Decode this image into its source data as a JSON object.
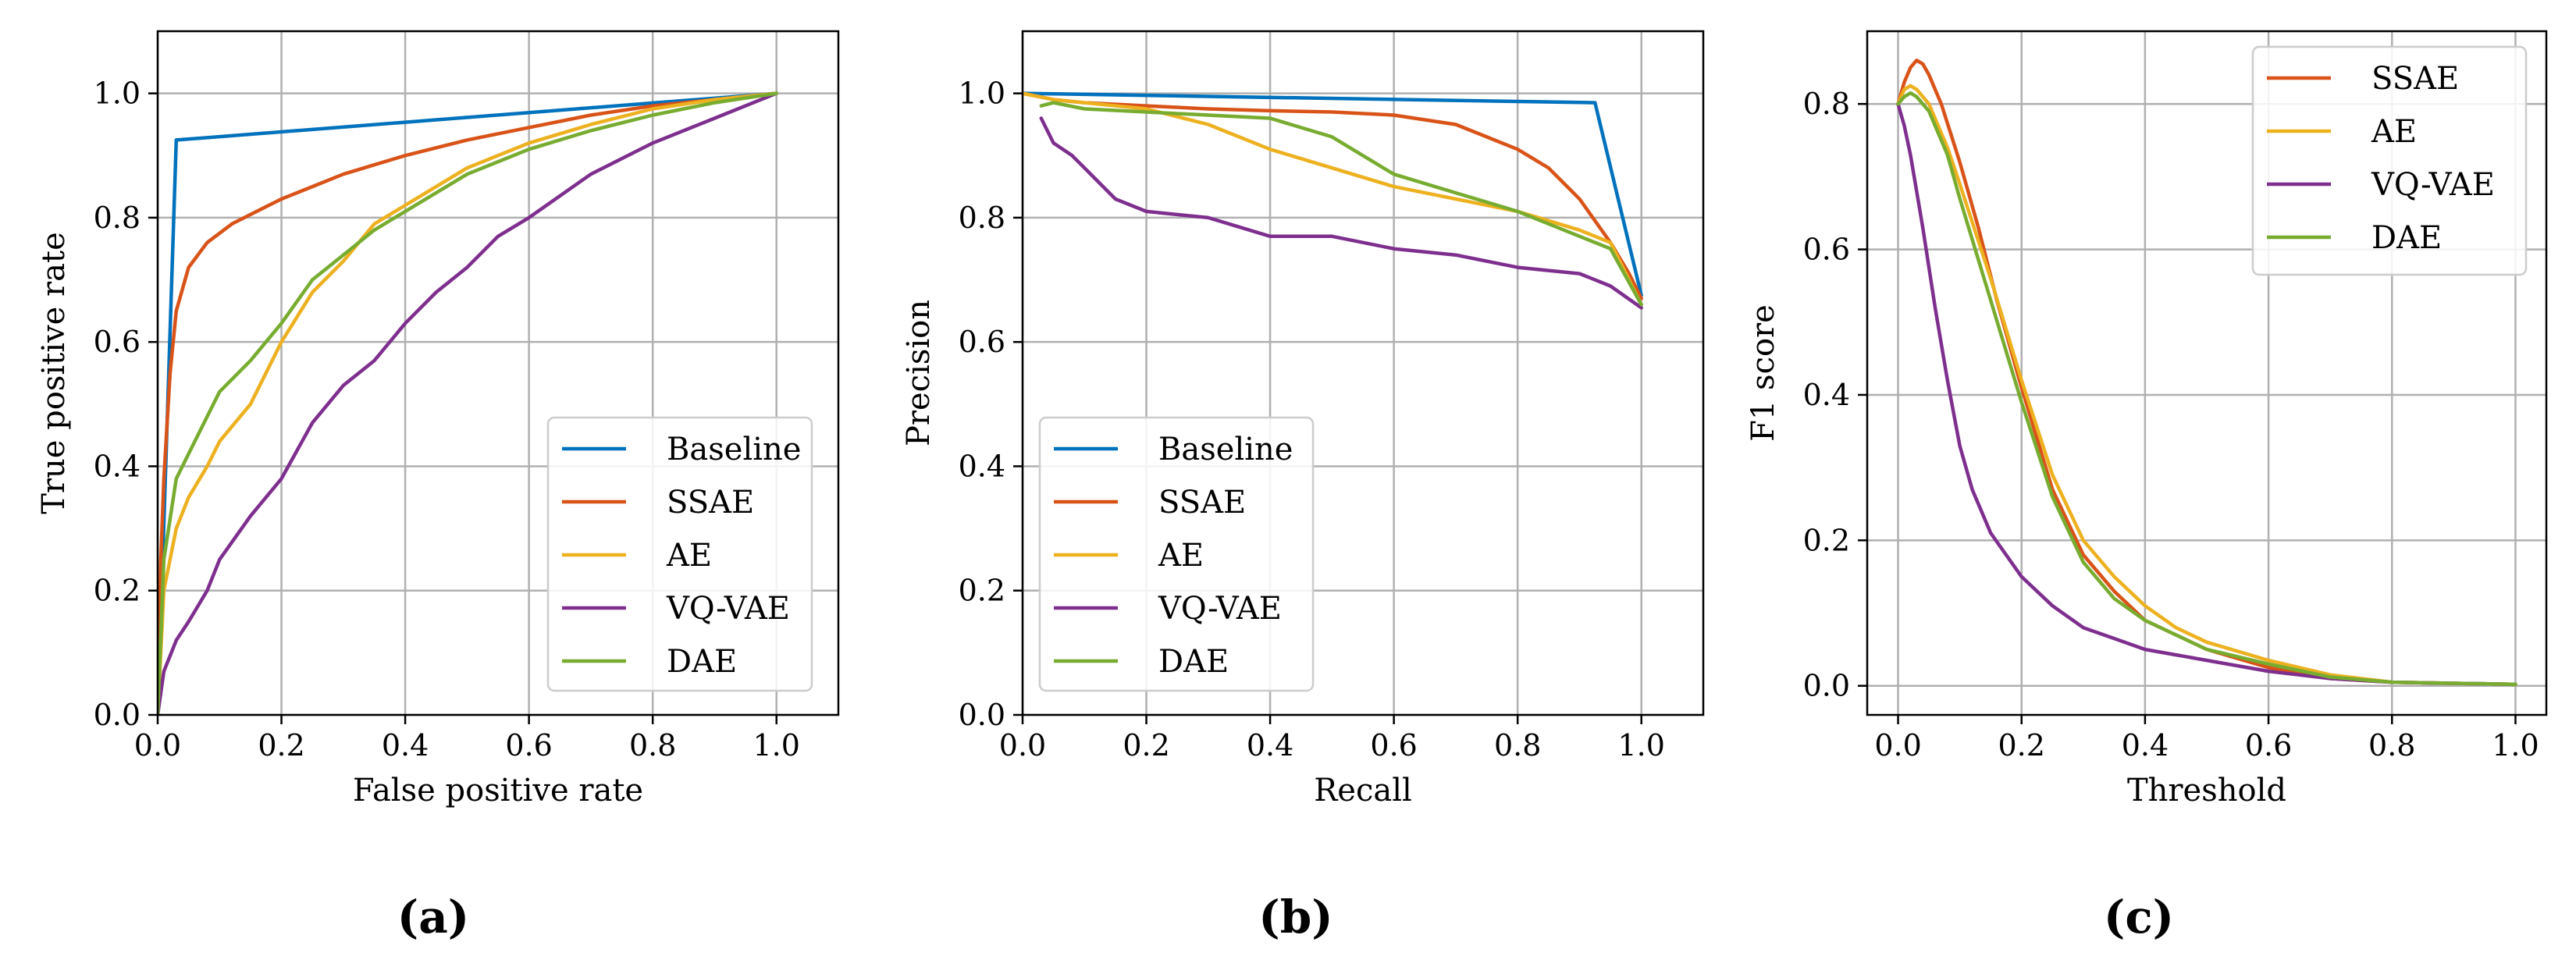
{
  "colors": {
    "Baseline": "#0072BD",
    "SSAE": "#D95319",
    "AE": "#EDB120",
    "VQ-VAE": "#7E2F8E",
    "DAE": "#77AC30"
  },
  "chart_data": [
    {
      "type": "line",
      "panel_label": "(a)",
      "title": "",
      "xlabel": "False positive rate",
      "ylabel": "True positive rate",
      "xlim": [
        0.0,
        1.1
      ],
      "ylim": [
        0.0,
        1.1
      ],
      "xticks": [
        0.0,
        0.2,
        0.4,
        0.6,
        0.8,
        1.0
      ],
      "yticks": [
        0.0,
        0.2,
        0.4,
        0.6,
        0.8,
        1.0
      ],
      "xtick_labels": [
        "0.0",
        "0.2",
        "0.4",
        "0.6",
        "0.8",
        "1.0"
      ],
      "ytick_labels": [
        "0.0",
        "0.2",
        "0.4",
        "0.6",
        "0.8",
        "1.0"
      ],
      "grid": true,
      "legend_position": "lower-right",
      "series": [
        {
          "name": "Baseline",
          "x": [
            0.0,
            0.03,
            1.0
          ],
          "y": [
            0.0,
            0.925,
            1.0
          ]
        },
        {
          "name": "SSAE",
          "x": [
            0.0,
            0.005,
            0.01,
            0.02,
            0.03,
            0.05,
            0.08,
            0.12,
            0.16,
            0.2,
            0.25,
            0.3,
            0.35,
            0.4,
            0.5,
            0.6,
            0.7,
            0.8,
            0.9,
            1.0
          ],
          "y": [
            0.0,
            0.25,
            0.38,
            0.55,
            0.65,
            0.72,
            0.76,
            0.79,
            0.81,
            0.83,
            0.85,
            0.87,
            0.885,
            0.9,
            0.925,
            0.945,
            0.965,
            0.98,
            0.99,
            1.0
          ]
        },
        {
          "name": "AE",
          "x": [
            0.0,
            0.01,
            0.03,
            0.05,
            0.08,
            0.1,
            0.15,
            0.2,
            0.25,
            0.3,
            0.35,
            0.4,
            0.5,
            0.6,
            0.7,
            0.8,
            0.9,
            1.0
          ],
          "y": [
            0.0,
            0.2,
            0.3,
            0.35,
            0.4,
            0.44,
            0.5,
            0.6,
            0.68,
            0.73,
            0.79,
            0.82,
            0.88,
            0.92,
            0.95,
            0.975,
            0.99,
            1.0
          ]
        },
        {
          "name": "VQ-VAE",
          "x": [
            0.0,
            0.01,
            0.03,
            0.05,
            0.08,
            0.1,
            0.15,
            0.2,
            0.25,
            0.3,
            0.35,
            0.4,
            0.45,
            0.5,
            0.55,
            0.6,
            0.7,
            0.8,
            0.9,
            1.0
          ],
          "y": [
            0.0,
            0.07,
            0.12,
            0.15,
            0.2,
            0.25,
            0.32,
            0.38,
            0.47,
            0.53,
            0.57,
            0.63,
            0.68,
            0.72,
            0.77,
            0.8,
            0.87,
            0.92,
            0.96,
            1.0
          ]
        },
        {
          "name": "DAE",
          "x": [
            0.0,
            0.01,
            0.03,
            0.05,
            0.08,
            0.1,
            0.15,
            0.2,
            0.25,
            0.3,
            0.35,
            0.4,
            0.5,
            0.6,
            0.7,
            0.8,
            0.9,
            1.0
          ],
          "y": [
            0.0,
            0.25,
            0.38,
            0.42,
            0.48,
            0.52,
            0.57,
            0.63,
            0.7,
            0.74,
            0.78,
            0.81,
            0.87,
            0.91,
            0.94,
            0.965,
            0.985,
            1.0
          ]
        }
      ]
    },
    {
      "type": "line",
      "panel_label": "(b)",
      "title": "",
      "xlabel": "Recall",
      "ylabel": "Precision",
      "xlim": [
        0.0,
        1.1
      ],
      "ylim": [
        0.0,
        1.1
      ],
      "xticks": [
        0.0,
        0.2,
        0.4,
        0.6,
        0.8,
        1.0
      ],
      "yticks": [
        0.0,
        0.2,
        0.4,
        0.6,
        0.8,
        1.0
      ],
      "xtick_labels": [
        "0.0",
        "0.2",
        "0.4",
        "0.6",
        "0.8",
        "1.0"
      ],
      "ytick_labels": [
        "0.0",
        "0.2",
        "0.4",
        "0.6",
        "0.8",
        "1.0"
      ],
      "grid": true,
      "legend_position": "lower-left",
      "series": [
        {
          "name": "Baseline",
          "x": [
            0.0,
            0.925,
            1.0
          ],
          "y": [
            1.0,
            0.985,
            0.675
          ]
        },
        {
          "name": "SSAE",
          "x": [
            0.0,
            0.05,
            0.1,
            0.2,
            0.3,
            0.4,
            0.5,
            0.6,
            0.7,
            0.8,
            0.85,
            0.9,
            0.95,
            0.98,
            1.0
          ],
          "y": [
            1.0,
            0.99,
            0.985,
            0.98,
            0.975,
            0.972,
            0.97,
            0.965,
            0.95,
            0.91,
            0.88,
            0.83,
            0.76,
            0.71,
            0.67
          ]
        },
        {
          "name": "AE",
          "x": [
            0.0,
            0.05,
            0.1,
            0.2,
            0.3,
            0.4,
            0.5,
            0.6,
            0.7,
            0.8,
            0.9,
            0.95,
            1.0
          ],
          "y": [
            1.0,
            0.99,
            0.985,
            0.975,
            0.95,
            0.91,
            0.88,
            0.85,
            0.83,
            0.81,
            0.78,
            0.76,
            0.66
          ]
        },
        {
          "name": "VQ-VAE",
          "x": [
            0.03,
            0.05,
            0.08,
            0.1,
            0.15,
            0.2,
            0.3,
            0.4,
            0.5,
            0.6,
            0.7,
            0.8,
            0.9,
            0.95,
            1.0
          ],
          "y": [
            0.96,
            0.92,
            0.9,
            0.88,
            0.83,
            0.81,
            0.8,
            0.77,
            0.77,
            0.75,
            0.74,
            0.72,
            0.71,
            0.69,
            0.655
          ]
        },
        {
          "name": "DAE",
          "x": [
            0.03,
            0.05,
            0.1,
            0.2,
            0.3,
            0.4,
            0.5,
            0.6,
            0.7,
            0.8,
            0.9,
            0.95,
            1.0
          ],
          "y": [
            0.98,
            0.985,
            0.975,
            0.97,
            0.965,
            0.96,
            0.93,
            0.87,
            0.84,
            0.81,
            0.77,
            0.75,
            0.66
          ]
        }
      ]
    },
    {
      "type": "line",
      "panel_label": "(c)",
      "title": "",
      "xlabel": "Threshold",
      "ylabel": "F1 score",
      "xlim": [
        -0.05,
        1.05
      ],
      "ylim": [
        -0.04,
        0.9
      ],
      "xticks": [
        0.0,
        0.2,
        0.4,
        0.6,
        0.8,
        1.0
      ],
      "yticks": [
        0.0,
        0.2,
        0.4,
        0.6,
        0.8
      ],
      "xtick_labels": [
        "0.0",
        "0.2",
        "0.4",
        "0.6",
        "0.8",
        "1.0"
      ],
      "ytick_labels": [
        "0.0",
        "0.2",
        "0.4",
        "0.6",
        "0.8"
      ],
      "grid": true,
      "legend_position": "upper-right",
      "series": [
        {
          "name": "SSAE",
          "x": [
            0.0,
            0.01,
            0.02,
            0.03,
            0.04,
            0.05,
            0.07,
            0.1,
            0.13,
            0.16,
            0.2,
            0.25,
            0.3,
            0.35,
            0.4,
            0.45,
            0.5,
            0.6,
            0.7,
            0.8,
            1.0
          ],
          "y": [
            0.8,
            0.83,
            0.85,
            0.86,
            0.855,
            0.84,
            0.8,
            0.72,
            0.63,
            0.53,
            0.41,
            0.27,
            0.18,
            0.13,
            0.09,
            0.07,
            0.05,
            0.025,
            0.01,
            0.005,
            0.002
          ]
        },
        {
          "name": "AE",
          "x": [
            0.0,
            0.01,
            0.02,
            0.03,
            0.05,
            0.08,
            0.1,
            0.15,
            0.2,
            0.25,
            0.3,
            0.35,
            0.4,
            0.45,
            0.5,
            0.6,
            0.7,
            0.8,
            1.0
          ],
          "y": [
            0.8,
            0.82,
            0.825,
            0.82,
            0.8,
            0.74,
            0.69,
            0.56,
            0.42,
            0.29,
            0.2,
            0.15,
            0.11,
            0.08,
            0.06,
            0.035,
            0.015,
            0.005,
            0.002
          ]
        },
        {
          "name": "VQ-VAE",
          "x": [
            0.0,
            0.01,
            0.02,
            0.04,
            0.06,
            0.08,
            0.1,
            0.12,
            0.15,
            0.2,
            0.25,
            0.3,
            0.35,
            0.4,
            0.5,
            0.6,
            0.7,
            0.8,
            1.0
          ],
          "y": [
            0.8,
            0.77,
            0.73,
            0.63,
            0.52,
            0.42,
            0.33,
            0.27,
            0.21,
            0.15,
            0.11,
            0.08,
            0.065,
            0.05,
            0.035,
            0.02,
            0.01,
            0.005,
            0.002
          ]
        },
        {
          "name": "DAE",
          "x": [
            0.0,
            0.01,
            0.02,
            0.03,
            0.05,
            0.08,
            0.1,
            0.15,
            0.2,
            0.25,
            0.3,
            0.35,
            0.4,
            0.45,
            0.5,
            0.6,
            0.7,
            0.8,
            1.0
          ],
          "y": [
            0.8,
            0.81,
            0.815,
            0.81,
            0.79,
            0.73,
            0.67,
            0.53,
            0.39,
            0.26,
            0.17,
            0.12,
            0.09,
            0.07,
            0.05,
            0.03,
            0.012,
            0.005,
            0.002
          ]
        }
      ]
    }
  ]
}
